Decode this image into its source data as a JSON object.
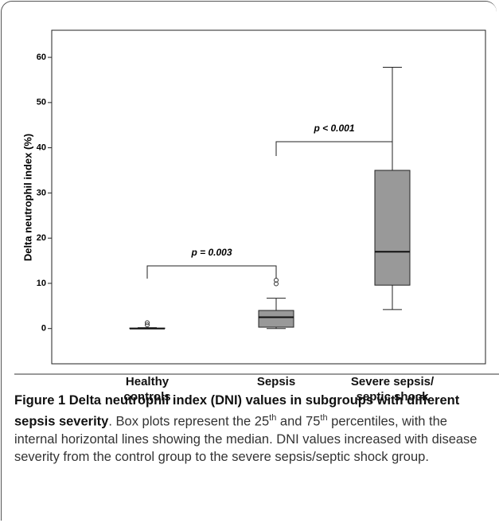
{
  "chart_data": {
    "type": "box",
    "y_label": "Delta neutrophil index (%)",
    "categories": [
      "Healthy\ncontrols",
      "Sepsis",
      "Severe sepsis/\nseptic shock"
    ],
    "boxes": [
      {
        "min": 0,
        "q1": 0,
        "median": 0,
        "q3": 0.1,
        "max": 0.2,
        "outliers": [
          1.3,
          0.8
        ]
      },
      {
        "min": 0,
        "q1": 0.3,
        "median": 2.5,
        "q3": 4,
        "max": 6.7,
        "outliers": [
          10.7,
          9.9
        ]
      },
      {
        "min": 4.2,
        "q1": 9.6,
        "median": 17,
        "q3": 35,
        "max": 57.8,
        "outliers": []
      }
    ],
    "color": "#999999",
    "ylim": [
      -7.8,
      66
    ],
    "yticks": [
      0,
      10,
      20,
      30,
      40,
      50,
      60
    ],
    "annotations": [
      "p = 0.003",
      "p < 0.001"
    ]
  },
  "caption": {
    "title": "Figure 1 Delta neutrophil index (DNI) values in subgroups with different sepsis severity",
    "parts": [
      ". Box plots represent the 25",
      "th",
      " and 75",
      "th",
      " percentiles, with the internal horizontal lines showing the median. DNI values increased with disease severity from the control group to the severe sepsis/septic shock group."
    ]
  }
}
